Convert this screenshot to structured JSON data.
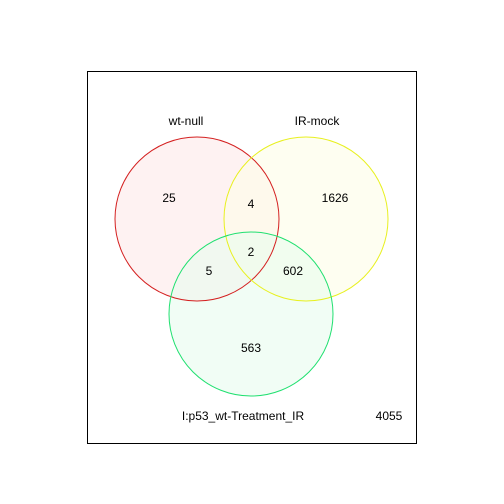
{
  "diagram": {
    "type": "venn",
    "sets": [
      {
        "label": "wt-null",
        "color": "#d42020",
        "fill": "#fdeaea"
      },
      {
        "label": "IR-mock",
        "color": "#e8f020",
        "fill": "#fefde8"
      },
      {
        "label": "I:p53_wt-Treatment_IR",
        "color": "#20e070",
        "fill": "#e8fbef"
      }
    ],
    "regions": {
      "only_wt_null": "25",
      "only_ir_mock": "1626",
      "only_treatment": "563",
      "wt_null_and_ir_mock": "4",
      "wt_null_and_treatment": "5",
      "ir_mock_and_treatment": "602",
      "all_three": "2"
    },
    "outside": "4055"
  }
}
